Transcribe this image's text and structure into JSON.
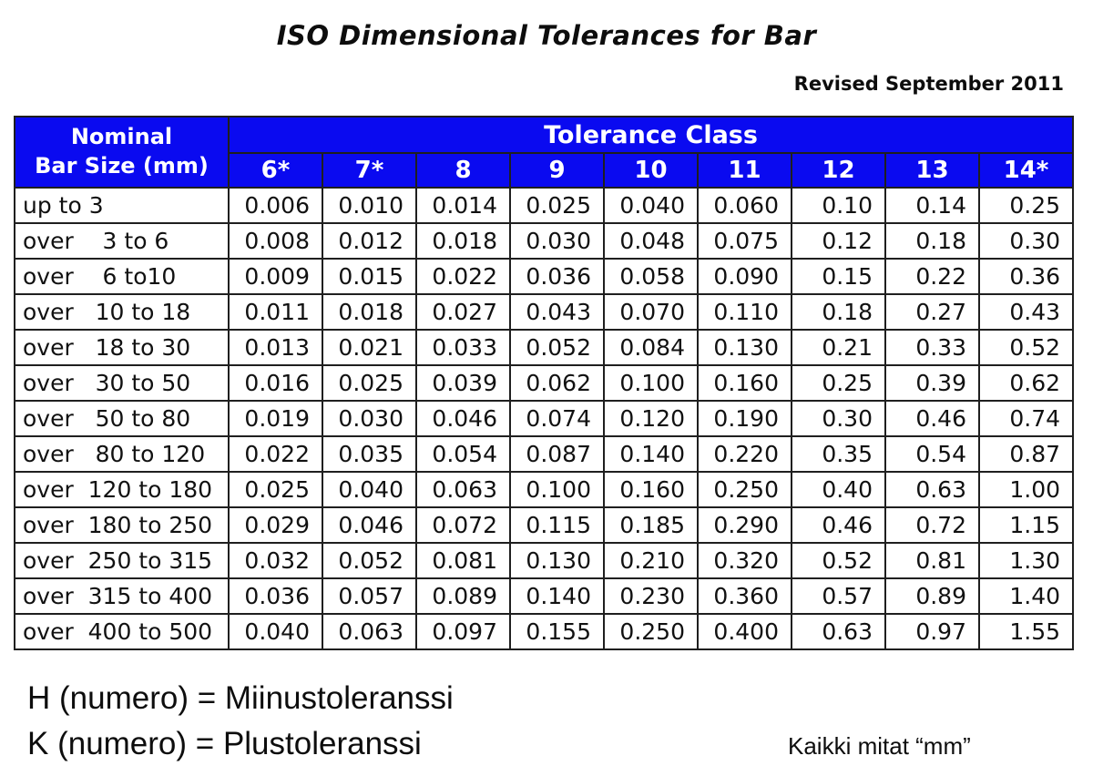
{
  "title": "ISO Dimensional Tolerances for Bar",
  "revision": "Revised September 2011",
  "colors": {
    "header_bg": "#0a0af0",
    "header_text": "#ffffff",
    "border": "#1f1f1f",
    "body_text": "#111111"
  },
  "table": {
    "corner_header_line1": "Nominal",
    "corner_header_line2": "Bar Size (mm)",
    "group_header": "Tolerance Class",
    "class_headers": [
      "6*",
      "7*",
      "8",
      "9",
      "10",
      "11",
      "12",
      "13",
      "14*"
    ],
    "rows": [
      {
        "label": "up to 3",
        "values": [
          "0.006",
          "0.010",
          "0.014",
          "0.025",
          "0.040",
          "0.060",
          "0.10",
          "0.14",
          "0.25"
        ]
      },
      {
        "label": "over    3 to 6",
        "values": [
          "0.008",
          "0.012",
          "0.018",
          "0.030",
          "0.048",
          "0.075",
          "0.12",
          "0.18",
          "0.30"
        ]
      },
      {
        "label": "over    6 to10",
        "values": [
          "0.009",
          "0.015",
          "0.022",
          "0.036",
          "0.058",
          "0.090",
          "0.15",
          "0.22",
          "0.36"
        ]
      },
      {
        "label": "over   10 to 18",
        "values": [
          "0.011",
          "0.018",
          "0.027",
          "0.043",
          "0.070",
          "0.110",
          "0.18",
          "0.27",
          "0.43"
        ]
      },
      {
        "label": "over   18 to 30",
        "values": [
          "0.013",
          "0.021",
          "0.033",
          "0.052",
          "0.084",
          "0.130",
          "0.21",
          "0.33",
          "0.52"
        ]
      },
      {
        "label": "over   30 to 50",
        "values": [
          "0.016",
          "0.025",
          "0.039",
          "0.062",
          "0.100",
          "0.160",
          "0.25",
          "0.39",
          "0.62"
        ]
      },
      {
        "label": "over   50 to 80",
        "values": [
          "0.019",
          "0.030",
          "0.046",
          "0.074",
          "0.120",
          "0.190",
          "0.30",
          "0.46",
          "0.74"
        ]
      },
      {
        "label": "over   80 to 120",
        "values": [
          "0.022",
          "0.035",
          "0.054",
          "0.087",
          "0.140",
          "0.220",
          "0.35",
          "0.54",
          "0.87"
        ]
      },
      {
        "label": "over  120 to 180",
        "values": [
          "0.025",
          "0.040",
          "0.063",
          "0.100",
          "0.160",
          "0.250",
          "0.40",
          "0.63",
          "1.00"
        ]
      },
      {
        "label": "over  180 to 250",
        "values": [
          "0.029",
          "0.046",
          "0.072",
          "0.115",
          "0.185",
          "0.290",
          "0.46",
          "0.72",
          "1.15"
        ]
      },
      {
        "label": "over  250 to 315",
        "values": [
          "0.032",
          "0.052",
          "0.081",
          "0.130",
          "0.210",
          "0.320",
          "0.52",
          "0.81",
          "1.30"
        ]
      },
      {
        "label": "over  315 to 400",
        "values": [
          "0.036",
          "0.057",
          "0.089",
          "0.140",
          "0.230",
          "0.360",
          "0.57",
          "0.89",
          "1.40"
        ]
      },
      {
        "label": "over  400 to 500",
        "values": [
          "0.040",
          "0.063",
          "0.097",
          "0.155",
          "0.250",
          "0.400",
          "0.63",
          "0.97",
          "1.55"
        ]
      }
    ]
  },
  "footer": {
    "line1": "H (numero) = Miinustoleranssi",
    "line2": "K (numero) = Plustoleranssi",
    "note": "Kaikki mitat “mm”"
  }
}
